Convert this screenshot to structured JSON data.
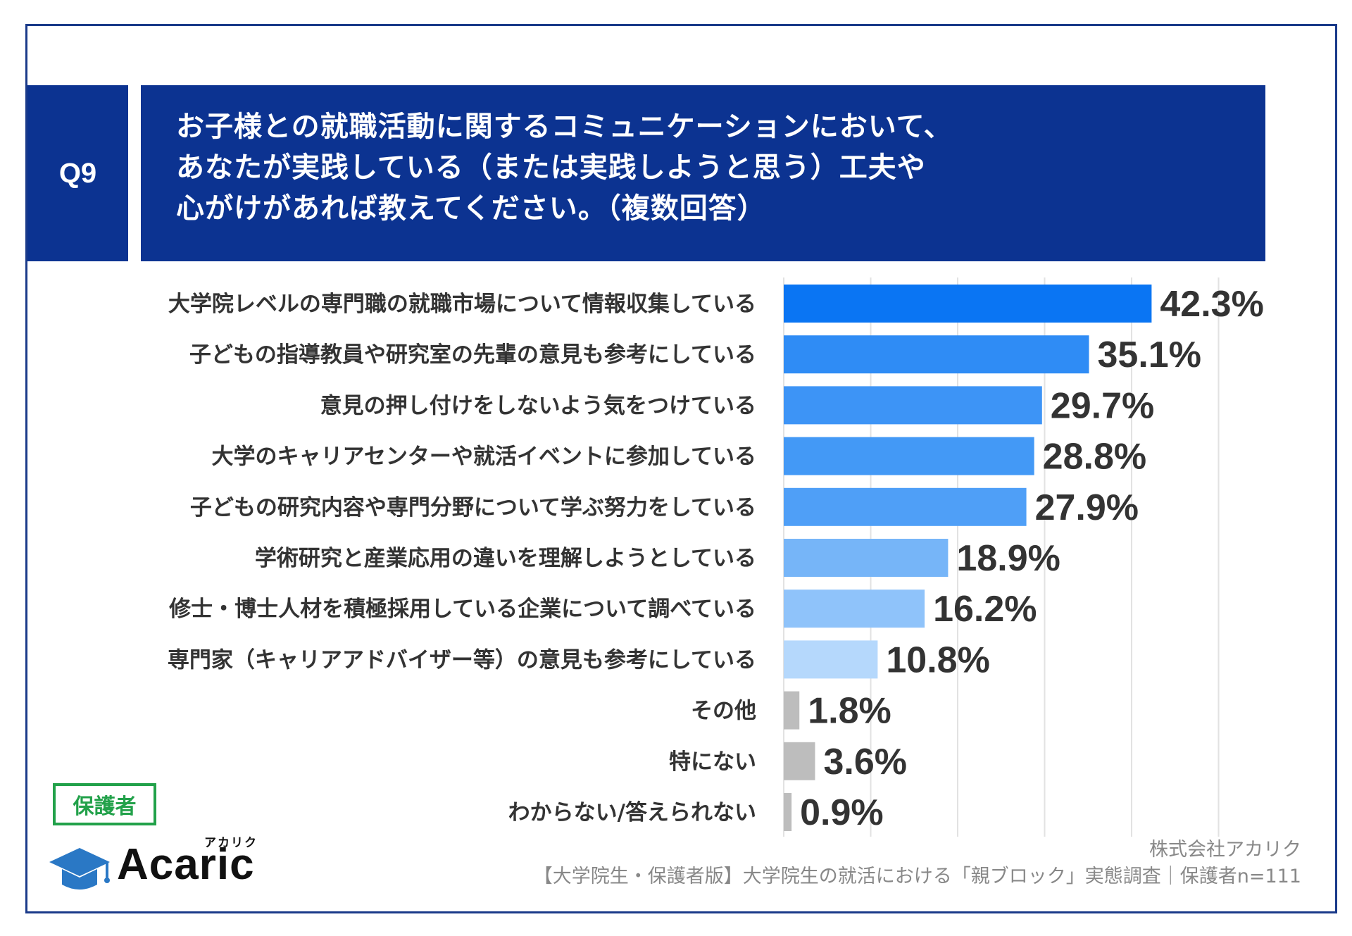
{
  "header": {
    "question_number": "Q9",
    "question_lines": [
      "お子様との就職活動に関するコミュニケーションにおいて、",
      "あなたが実践している（または実践しようと思う）工夫や",
      "心がけがあれば教えてください。（複数回答）"
    ]
  },
  "chart_data": {
    "type": "bar",
    "orientation": "horizontal",
    "categories": [
      "大学院レベルの専門職の就職市場について情報収集している",
      "子どもの指導教員や研究室の先輩の意見も参考にしている",
      "意見の押し付けをしないよう気をつけている",
      "大学のキャリアセンターや就活イベントに参加している",
      "子どもの研究内容や専門分野について学ぶ努力をしている",
      "学術研究と産業応用の違いを理解しようとしている",
      "修士・博士人材を積極採用している企業について調べている",
      "専門家（キャリアアドバイザー等）の意見も参考にしている",
      "その他",
      "特にない",
      "わからない/答えられない"
    ],
    "values": [
      42.3,
      35.1,
      29.7,
      28.8,
      27.9,
      18.9,
      16.2,
      10.8,
      1.8,
      3.6,
      0.9
    ],
    "value_labels": [
      "42.3%",
      "35.1%",
      "29.7%",
      "28.8%",
      "27.9%",
      "18.9%",
      "16.2%",
      "10.8%",
      "1.8%",
      "3.6%",
      "0.9%"
    ],
    "bar_colors": [
      "#0a75f3",
      "#2f8cf5",
      "#3d94f6",
      "#4399f6",
      "#4f9ff7",
      "#76b5f8",
      "#8fc3fa",
      "#b5d8fc",
      "#bdbdbd",
      "#bdbdbd",
      "#bdbdbd"
    ],
    "xlim": [
      0,
      50
    ],
    "grid": true
  },
  "respondent_badge": "保護者",
  "logo": {
    "text": "Acaric",
    "kana": "アカリク",
    "icon": "graduation-cap-icon"
  },
  "source": {
    "company": "株式会社アカリク",
    "survey": "【大学院生・保護者版】大学院生の就活における「親ブロック」実態調査｜保護者n=111"
  }
}
